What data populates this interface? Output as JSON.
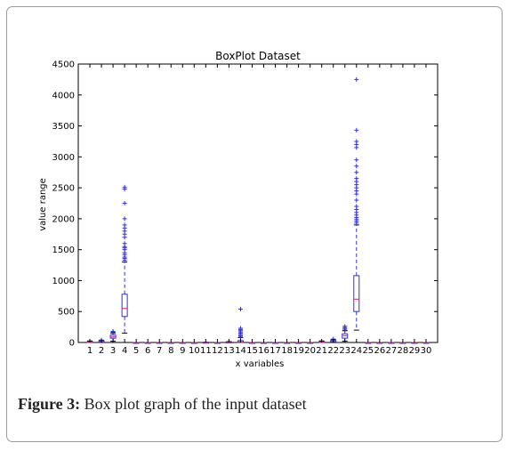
{
  "figure": {
    "caption_label": "Figure 3:",
    "caption_text": " Box plot graph of the input dataset"
  },
  "chart_data": {
    "type": "box",
    "title": "BoxPlot Dataset",
    "xlabel": "x variables",
    "ylabel": "value range",
    "ylim": [
      0,
      4500
    ],
    "yticks": [
      0,
      500,
      1000,
      1500,
      2000,
      2500,
      3000,
      3500,
      4000,
      4500
    ],
    "categories": [
      "1",
      "2",
      "3",
      "4",
      "5",
      "6",
      "7",
      "8",
      "9",
      "10",
      "11",
      "12",
      "13",
      "14",
      "15",
      "16",
      "17",
      "18",
      "19",
      "20",
      "21",
      "22",
      "23",
      "24",
      "25",
      "26",
      "27",
      "28",
      "29",
      "30"
    ],
    "colors": {
      "box": "#3333cc",
      "median": "#e0206c",
      "outlier": "#3333cc"
    },
    "boxes": [
      {
        "x": 1,
        "min": 0,
        "q1": 0,
        "median": 5,
        "q3": 15,
        "max": 25,
        "outliers": []
      },
      {
        "x": 2,
        "min": 0,
        "q1": 5,
        "median": 15,
        "q3": 25,
        "max": 35,
        "outliers": [
          40
        ]
      },
      {
        "x": 3,
        "min": 20,
        "q1": 70,
        "median": 90,
        "q3": 120,
        "max": 150,
        "outliers": [
          160,
          170,
          180
        ]
      },
      {
        "x": 4,
        "min": 150,
        "q1": 420,
        "median": 550,
        "q3": 780,
        "max": 1300,
        "outliers": [
          1330,
          1360,
          1380,
          1420,
          1450,
          1500,
          1530,
          1550,
          1600,
          1700,
          1750,
          1800,
          1850,
          1900,
          2000,
          2250,
          2480,
          2510
        ]
      },
      {
        "x": 5,
        "min": 0,
        "q1": 0,
        "median": 0,
        "q3": 0,
        "max": 0,
        "outliers": []
      },
      {
        "x": 6,
        "min": 0,
        "q1": 0,
        "median": 0,
        "q3": 0,
        "max": 0,
        "outliers": []
      },
      {
        "x": 7,
        "min": 0,
        "q1": 0,
        "median": 0,
        "q3": 0,
        "max": 0,
        "outliers": []
      },
      {
        "x": 8,
        "min": 0,
        "q1": 0,
        "median": 0,
        "q3": 0,
        "max": 0,
        "outliers": []
      },
      {
        "x": 9,
        "min": 0,
        "q1": 0,
        "median": 0,
        "q3": 0,
        "max": 0,
        "outliers": []
      },
      {
        "x": 10,
        "min": 0,
        "q1": 0,
        "median": 0,
        "q3": 0,
        "max": 0,
        "outliers": []
      },
      {
        "x": 11,
        "min": 0,
        "q1": 0,
        "median": 0,
        "q3": 3,
        "max": 5,
        "outliers": []
      },
      {
        "x": 12,
        "min": 0,
        "q1": 0,
        "median": 0,
        "q3": 0,
        "max": 0,
        "outliers": []
      },
      {
        "x": 13,
        "min": 0,
        "q1": 0,
        "median": 2,
        "q3": 8,
        "max": 15,
        "outliers": []
      },
      {
        "x": 14,
        "min": 0,
        "q1": 0,
        "median": 10,
        "q3": 30,
        "max": 80,
        "outliers": [
          90,
          110,
          130,
          150,
          170,
          190,
          210,
          230,
          540
        ]
      },
      {
        "x": 15,
        "min": 0,
        "q1": 0,
        "median": 0,
        "q3": 0,
        "max": 0,
        "outliers": []
      },
      {
        "x": 16,
        "min": 0,
        "q1": 0,
        "median": 0,
        "q3": 0,
        "max": 0,
        "outliers": []
      },
      {
        "x": 17,
        "min": 0,
        "q1": 0,
        "median": 0,
        "q3": 0,
        "max": 0,
        "outliers": []
      },
      {
        "x": 18,
        "min": 0,
        "q1": 0,
        "median": 0,
        "q3": 0,
        "max": 0,
        "outliers": []
      },
      {
        "x": 19,
        "min": 0,
        "q1": 0,
        "median": 0,
        "q3": 0,
        "max": 0,
        "outliers": []
      },
      {
        "x": 20,
        "min": 0,
        "q1": 0,
        "median": 0,
        "q3": 0,
        "max": 0,
        "outliers": []
      },
      {
        "x": 21,
        "min": 0,
        "q1": 0,
        "median": 5,
        "q3": 15,
        "max": 25,
        "outliers": []
      },
      {
        "x": 22,
        "min": 0,
        "q1": 10,
        "median": 20,
        "q3": 35,
        "max": 50,
        "outliers": [
          55
        ]
      },
      {
        "x": 23,
        "min": 20,
        "q1": 70,
        "median": 110,
        "q3": 140,
        "max": 190,
        "outliers": [
          200,
          220,
          240,
          260
        ]
      },
      {
        "x": 24,
        "min": 200,
        "q1": 500,
        "median": 700,
        "q3": 1080,
        "max": 1900,
        "outliers": [
          1930,
          1960,
          1990,
          2020,
          2060,
          2100,
          2150,
          2200,
          2300,
          2400,
          2450,
          2500,
          2550,
          2600,
          2650,
          2750,
          2850,
          2950,
          3150,
          3200,
          3250,
          3430,
          4250
        ]
      },
      {
        "x": 25,
        "min": 0,
        "q1": 0,
        "median": 0,
        "q3": 0,
        "max": 0,
        "outliers": []
      },
      {
        "x": 26,
        "min": 0,
        "q1": 0,
        "median": 0,
        "q3": 0,
        "max": 0,
        "outliers": []
      },
      {
        "x": 27,
        "min": 0,
        "q1": 0,
        "median": 0,
        "q3": 0,
        "max": 0,
        "outliers": []
      },
      {
        "x": 28,
        "min": 0,
        "q1": 0,
        "median": 0,
        "q3": 0,
        "max": 0,
        "outliers": []
      },
      {
        "x": 29,
        "min": 0,
        "q1": 0,
        "median": 0,
        "q3": 0,
        "max": 0,
        "outliers": []
      },
      {
        "x": 30,
        "min": 0,
        "q1": 0,
        "median": 0,
        "q3": 0,
        "max": 0,
        "outliers": []
      }
    ]
  }
}
